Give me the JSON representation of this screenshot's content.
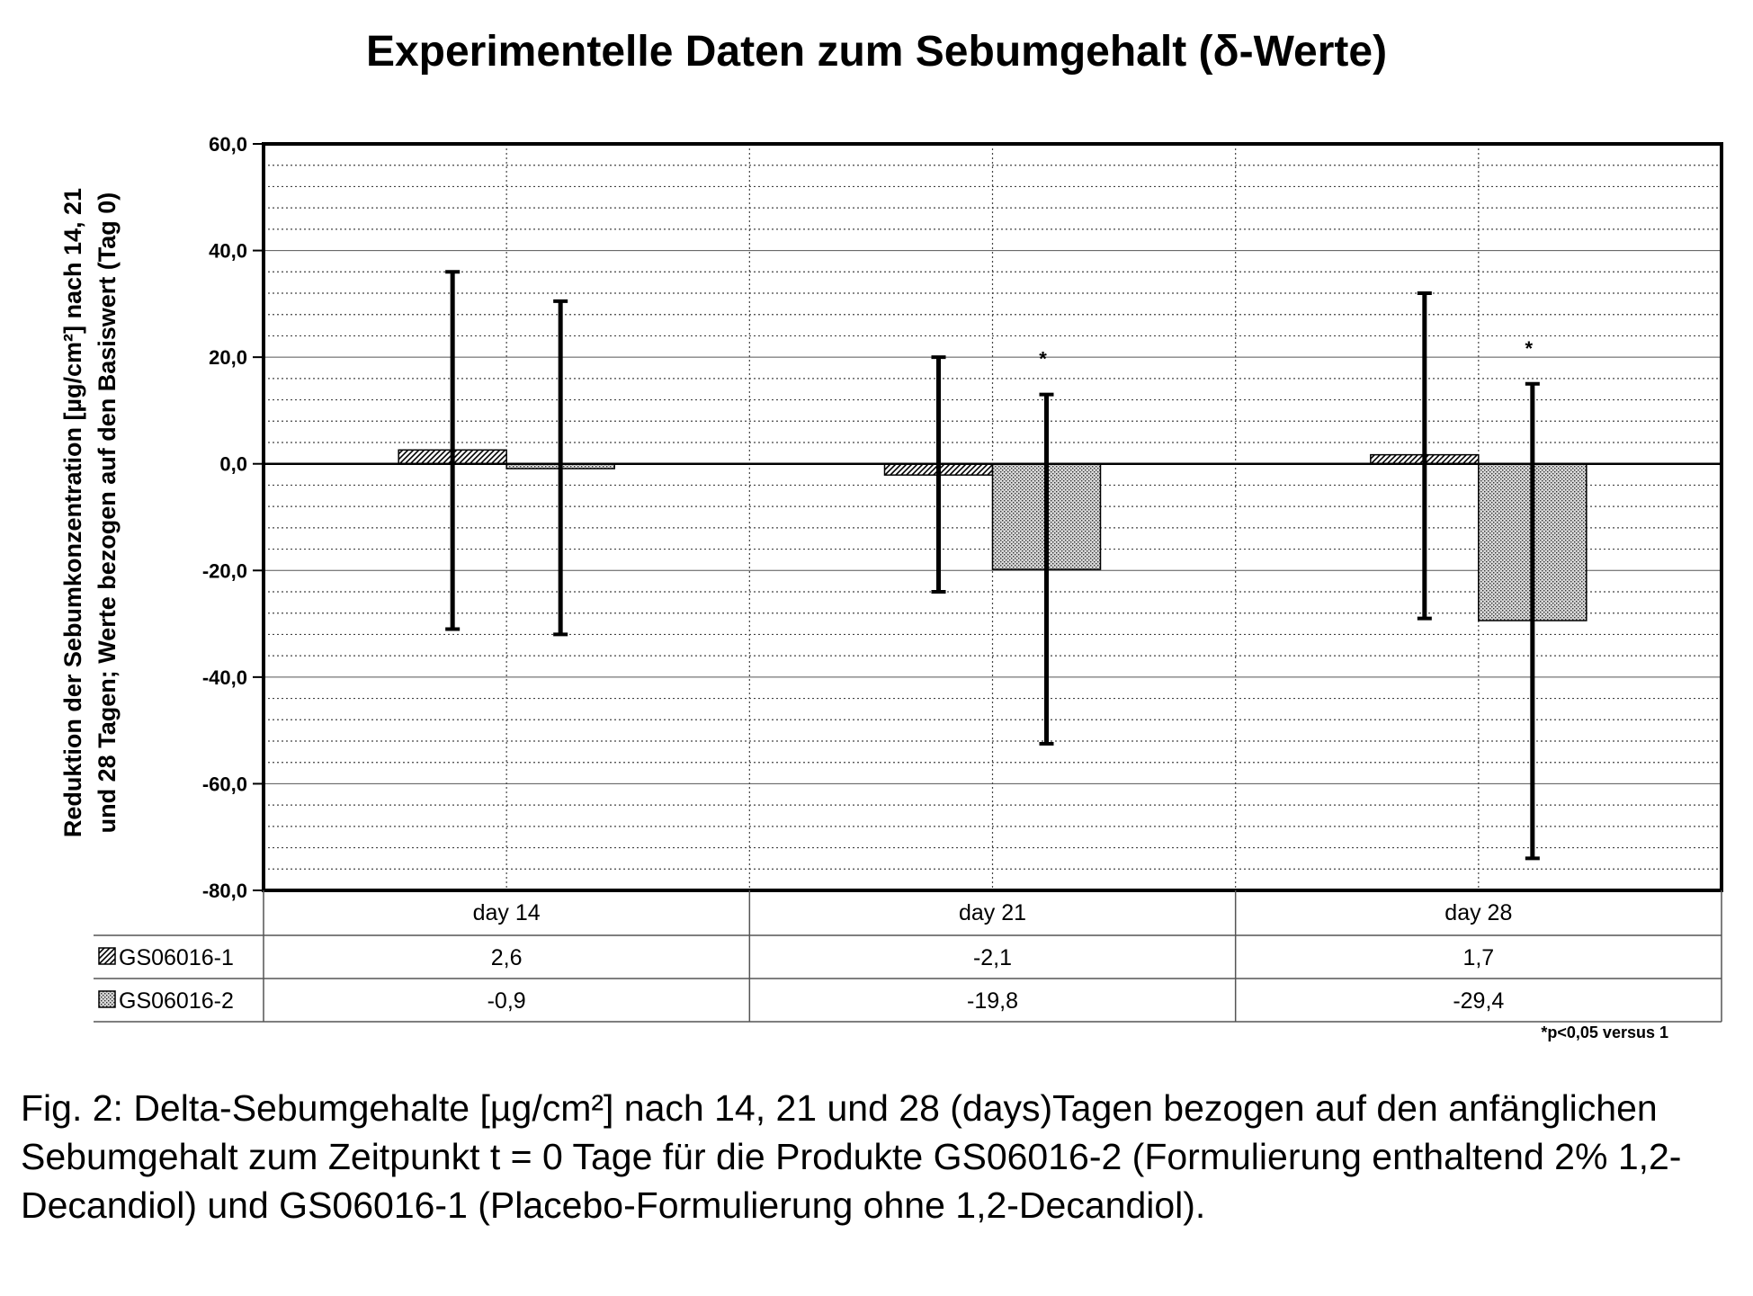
{
  "chart_data": {
    "type": "bar",
    "title": "Experimentelle Daten zum Sebumgehalt (δ-Werte)",
    "ylabel_line1": "Reduktion der Sebumkonzentration [µg/cm²] nach 14, 21",
    "ylabel_line2": "und 28 Tagen; Werte bezogen auf den Basiswert (Tag 0)",
    "xlabel": "",
    "ylim": [
      -80,
      60
    ],
    "ytick_step": 20,
    "yticks": [
      "60,0",
      "40,0",
      "20,0",
      "0,0",
      "-20,0",
      "-40,0",
      "-60,0",
      "-80,0"
    ],
    "grid": true,
    "categories": [
      "day 14",
      "day 21",
      "day 28"
    ],
    "series": [
      {
        "name": "GS06016-1",
        "pattern": "diagonal-hatch",
        "values": [
          2.6,
          -2.1,
          1.7
        ],
        "value_labels": [
          "2,6",
          "-2,1",
          "1,7"
        ],
        "error_low": [
          -31,
          -24,
          -29
        ],
        "error_high": [
          36,
          20,
          32
        ]
      },
      {
        "name": "GS06016-2",
        "pattern": "dots",
        "values": [
          -0.9,
          -19.8,
          -29.4
        ],
        "value_labels": [
          "-0,9",
          "-19,8",
          "-29,4"
        ],
        "error_low": [
          -32,
          -52.5,
          -74
        ],
        "error_high": [
          30.5,
          13,
          15
        ]
      }
    ],
    "significance_marks": [
      {
        "category": "day 21",
        "series": "GS06016-2",
        "label": "*"
      },
      {
        "category": "day 28",
        "series": "GS06016-2",
        "label": "*"
      }
    ],
    "footnote": "*p<0,05 versus 1"
  },
  "caption": "Fig. 2: Delta-Sebumgehalte [µg/cm²] nach 14, 21 und 28 (days)Tagen bezogen auf den anfänglichen Sebumgehalt zum Zeitpunkt t = 0 Tage für die Produkte GS06016-2 (Formulierung enthaltend 2% 1,2-Decandiol) und GS06016-1 (Placebo-Formulierung ohne 1,2-Decandiol).",
  "colors": {
    "axis": "#000000",
    "grid": "#333333",
    "hatch_fill": "#ffffff",
    "dot_fill": "#d9d9d9"
  }
}
